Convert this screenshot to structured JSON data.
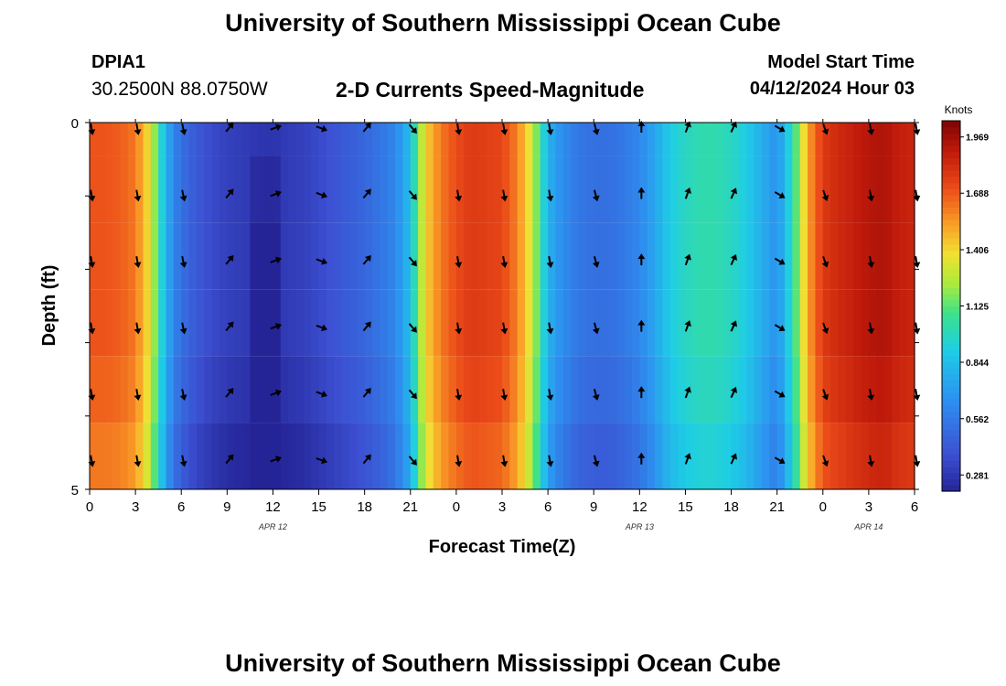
{
  "header": {
    "title": "University of Southern Mississippi Ocean Cube",
    "station": "DPIA1",
    "coords": "30.2500N  88.0750W",
    "subtitle": "2-D Currents Speed-Magnitude",
    "model_start_label": "Model Start Time",
    "model_start_value": "04/12/2024 Hour 03"
  },
  "footer": {
    "title": "University of Southern Mississippi Ocean Cube"
  },
  "chart_data": {
    "type": "heatmap",
    "title": "2-D Currents Speed-Magnitude",
    "xlabel": "Forecast Time(Z)",
    "ylabel": "Depth (ft)",
    "x_range_hours": [
      0,
      54
    ],
    "y_range": [
      0,
      5
    ],
    "x_ticks": [
      0,
      3,
      6,
      9,
      12,
      15,
      18,
      21,
      24,
      27,
      30,
      33,
      36,
      39,
      42,
      45,
      48,
      51,
      54
    ],
    "x_tick_labels": [
      "0",
      "3",
      "6",
      "9",
      "12",
      "15",
      "18",
      "21",
      "0",
      "3",
      "6",
      "9",
      "12",
      "15",
      "18",
      "21",
      "0",
      "3",
      "6"
    ],
    "y_tick_labels": [
      "0",
      "5"
    ],
    "date_labels": [
      {
        "hour": 12,
        "text": "APR 12"
      },
      {
        "hour": 36,
        "text": "APR 13"
      },
      {
        "hour": 51,
        "text": "APR 14"
      }
    ],
    "colorbar": {
      "unit": "Knots",
      "min": 0.2,
      "max": 2.05,
      "ticks": [
        "0.281",
        "0.562",
        "0.844",
        "1.125",
        "1.406",
        "1.688",
        "1.969"
      ]
    },
    "depth_levels": 5,
    "speed_knots_by_hour": [
      [
        0,
        1.7
      ],
      [
        1,
        1.7
      ],
      [
        2,
        1.68
      ],
      [
        3,
        1.62
      ],
      [
        4,
        1.35
      ],
      [
        4.5,
        1.05
      ],
      [
        5,
        0.8
      ],
      [
        5.5,
        0.62
      ],
      [
        6,
        0.52
      ],
      [
        7,
        0.42
      ],
      [
        8,
        0.36
      ],
      [
        9,
        0.32
      ],
      [
        10,
        0.3
      ],
      [
        11,
        0.28
      ],
      [
        12,
        0.27
      ],
      [
        13,
        0.3
      ],
      [
        14,
        0.32
      ],
      [
        15,
        0.36
      ],
      [
        16,
        0.4
      ],
      [
        17,
        0.44
      ],
      [
        18,
        0.48
      ],
      [
        19,
        0.54
      ],
      [
        20,
        0.62
      ],
      [
        21,
        0.85
      ],
      [
        21.5,
        1.15
      ],
      [
        22,
        1.42
      ],
      [
        23,
        1.62
      ],
      [
        24,
        1.72
      ],
      [
        25,
        1.78
      ],
      [
        26,
        1.76
      ],
      [
        27,
        1.74
      ],
      [
        28,
        1.6
      ],
      [
        29,
        1.3
      ],
      [
        29.5,
        1.05
      ],
      [
        30,
        0.8
      ],
      [
        31,
        0.64
      ],
      [
        32,
        0.55
      ],
      [
        33,
        0.52
      ],
      [
        34,
        0.52
      ],
      [
        35,
        0.56
      ],
      [
        36,
        0.62
      ],
      [
        37,
        0.75
      ],
      [
        38,
        0.9
      ],
      [
        39,
        0.98
      ],
      [
        40,
        1.02
      ],
      [
        41,
        1.02
      ],
      [
        42,
        0.98
      ],
      [
        43,
        0.9
      ],
      [
        44,
        0.78
      ],
      [
        45,
        0.66
      ],
      [
        46,
        1.0
      ],
      [
        47,
        1.52
      ],
      [
        48,
        1.78
      ],
      [
        49,
        1.84
      ],
      [
        50,
        1.88
      ],
      [
        51,
        1.92
      ],
      [
        52,
        1.94
      ],
      [
        53,
        1.88
      ],
      [
        54,
        1.86
      ]
    ],
    "depth_adjustment": [
      0,
      0,
      0,
      0,
      -0.03,
      -0.08
    ],
    "arrow_direction_deg": [
      [
        0,
        170
      ],
      [
        3,
        170
      ],
      [
        6,
        168
      ],
      [
        9,
        40
      ],
      [
        12,
        70
      ],
      [
        15,
        110
      ],
      [
        18,
        40
      ],
      [
        21,
        140
      ],
      [
        24,
        170
      ],
      [
        27,
        170
      ],
      [
        30,
        170
      ],
      [
        33,
        165
      ],
      [
        36,
        0
      ],
      [
        39,
        20
      ],
      [
        42,
        25
      ],
      [
        45,
        120
      ],
      [
        48,
        160
      ],
      [
        51,
        170
      ],
      [
        54,
        170
      ]
    ]
  }
}
